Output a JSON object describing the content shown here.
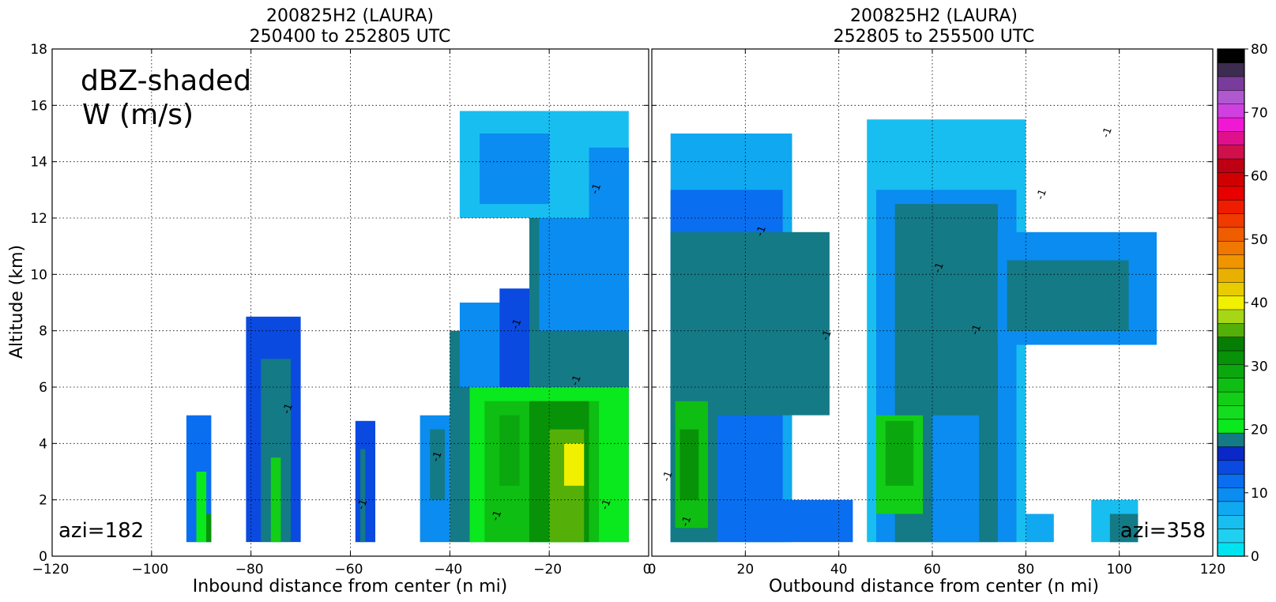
{
  "chart_data": [
    {
      "type": "heatmap",
      "panel": "left",
      "title_line1": "200825H2 (LAURA)",
      "title_line2": "250400 to 252805 UTC",
      "xlabel": "Inbound distance from center (n mi)",
      "ylabel": "Altitude (km)",
      "xlim": [
        -120,
        0
      ],
      "ylim": [
        0,
        18
      ],
      "xticks": [
        -120,
        -100,
        -80,
        -60,
        -40,
        -20,
        0
      ],
      "yticks": [
        0,
        2,
        4,
        6,
        8,
        10,
        12,
        14,
        16,
        18
      ],
      "grid": true,
      "annotation_line1": "dBZ-shaded",
      "annotation_line2": "W (m/s)",
      "azimuth_label": "azi=182",
      "contour_label": "-1",
      "cells": [
        {
          "x0": -93,
          "x1": -88,
          "y0": 0.5,
          "y1": 5.0,
          "dbz": 14
        },
        {
          "x0": -91,
          "x1": -89,
          "y0": 0.5,
          "y1": 3.0,
          "dbz": 24
        },
        {
          "x0": -89,
          "x1": -88,
          "y0": 0.5,
          "y1": 1.5,
          "dbz": 36
        },
        {
          "x0": -81,
          "x1": -70,
          "y0": 0.5,
          "y1": 8.5,
          "dbz": 16
        },
        {
          "x0": -78,
          "x1": -72,
          "y0": 0.5,
          "y1": 7.0,
          "dbz": 22
        },
        {
          "x0": -76,
          "x1": -74,
          "y0": 0.5,
          "y1": 3.5,
          "dbz": 28
        },
        {
          "x0": -59,
          "x1": -55,
          "y0": 0.5,
          "y1": 4.8,
          "dbz": 16
        },
        {
          "x0": -58,
          "x1": -57,
          "y0": 0.5,
          "y1": 3.8,
          "dbz": 22
        },
        {
          "x0": -46,
          "x1": -40,
          "y0": 0.5,
          "y1": 5.0,
          "dbz": 12
        },
        {
          "x0": -44,
          "x1": -41,
          "y0": 2.0,
          "y1": 4.5,
          "dbz": 20
        },
        {
          "x0": -40,
          "x1": -4,
          "y0": 0.5,
          "y1": 8.0,
          "dbz": 20
        },
        {
          "x0": -36,
          "x1": -4,
          "y0": 0.5,
          "y1": 6.0,
          "dbz": 24
        },
        {
          "x0": -33,
          "x1": -10,
          "y0": 0.5,
          "y1": 5.5,
          "dbz": 30
        },
        {
          "x0": -30,
          "x1": -26,
          "y0": 2.5,
          "y1": 5.0,
          "dbz": 34
        },
        {
          "x0": -24,
          "x1": -12,
          "y0": 0.5,
          "y1": 5.5,
          "dbz": 36
        },
        {
          "x0": -20,
          "x1": -13,
          "y0": 0.5,
          "y1": 4.5,
          "dbz": 40
        },
        {
          "x0": -17,
          "x1": -13,
          "y0": 2.5,
          "y1": 4.0,
          "dbz": 46
        },
        {
          "x0": -38,
          "x1": -4,
          "y0": 6.0,
          "y1": 9.0,
          "dbz": 12
        },
        {
          "x0": -30,
          "x1": -4,
          "y0": 6.0,
          "y1": 9.5,
          "dbz": 16
        },
        {
          "x0": -24,
          "x1": -4,
          "y0": 6.0,
          "y1": 12.0,
          "dbz": 20
        },
        {
          "x0": -22,
          "x1": -4,
          "y0": 8.0,
          "y1": 14.5,
          "dbz": 11
        },
        {
          "x0": -38,
          "x1": -4,
          "y0": 12.0,
          "y1": 15.8,
          "dbz": 6
        },
        {
          "x0": -34,
          "x1": -20,
          "y0": 12.5,
          "y1": 15.0,
          "dbz": 10
        },
        {
          "x0": -12,
          "x1": -4,
          "y0": 10.0,
          "y1": 14.5,
          "dbz": 12
        }
      ]
    },
    {
      "type": "heatmap",
      "panel": "right",
      "title_line1": "200825H2 (LAURA)",
      "title_line2": "252805 to 255500 UTC",
      "xlabel": "Outbound distance from center (n mi)",
      "ylabel": "",
      "xlim": [
        0,
        120
      ],
      "ylim": [
        0,
        18
      ],
      "xticks": [
        0,
        20,
        40,
        60,
        80,
        100,
        120
      ],
      "yticks": [
        0,
        2,
        4,
        6,
        8,
        10,
        12,
        14,
        16,
        18
      ],
      "grid": true,
      "azimuth_label": "azi=358",
      "contour_label": "-1",
      "cells": [
        {
          "x0": 4,
          "x1": 30,
          "y0": 0.5,
          "y1": 15.0,
          "dbz": 8
        },
        {
          "x0": 4,
          "x1": 28,
          "y0": 0.5,
          "y1": 13.0,
          "dbz": 13
        },
        {
          "x0": 4,
          "x1": 38,
          "y0": 5.0,
          "y1": 11.5,
          "dbz": 20
        },
        {
          "x0": 4,
          "x1": 14,
          "y0": 0.5,
          "y1": 8.0,
          "dbz": 22
        },
        {
          "x0": 5,
          "x1": 12,
          "y0": 1.0,
          "y1": 5.5,
          "dbz": 32
        },
        {
          "x0": 6,
          "x1": 10,
          "y0": 2.0,
          "y1": 4.5,
          "dbz": 36
        },
        {
          "x0": 20,
          "x1": 43,
          "y0": 0.5,
          "y1": 2.0,
          "dbz": 14
        },
        {
          "x0": 46,
          "x1": 80,
          "y0": 0.5,
          "y1": 15.5,
          "dbz": 7
        },
        {
          "x0": 48,
          "x1": 78,
          "y0": 0.5,
          "y1": 13.0,
          "dbz": 12
        },
        {
          "x0": 52,
          "x1": 74,
          "y0": 0.5,
          "y1": 12.5,
          "dbz": 20
        },
        {
          "x0": 74,
          "x1": 108,
          "y0": 7.5,
          "y1": 11.5,
          "dbz": 12
        },
        {
          "x0": 76,
          "x1": 102,
          "y0": 8.0,
          "y1": 10.5,
          "dbz": 20
        },
        {
          "x0": 48,
          "x1": 58,
          "y0": 1.5,
          "y1": 5.0,
          "dbz": 28
        },
        {
          "x0": 50,
          "x1": 56,
          "y0": 2.5,
          "y1": 4.8,
          "dbz": 34
        },
        {
          "x0": 60,
          "x1": 70,
          "y0": 0.5,
          "y1": 5.0,
          "dbz": 10
        },
        {
          "x0": 80,
          "x1": 86,
          "y0": 0.5,
          "y1": 1.5,
          "dbz": 9
        },
        {
          "x0": 94,
          "x1": 104,
          "y0": 0.5,
          "y1": 2.0,
          "dbz": 7
        },
        {
          "x0": 98,
          "x1": 104,
          "y0": 0.5,
          "y1": 1.5,
          "dbz": 20
        }
      ]
    }
  ],
  "colorbar": {
    "min": 0,
    "max": 80,
    "step": 2.5,
    "tick_labels": [
      "0",
      "10",
      "20",
      "30",
      "40",
      "50",
      "60",
      "70",
      "80"
    ],
    "colors": [
      "#00e4f0",
      "#20d0f0",
      "#18bef0",
      "#10a8f0",
      "#0a8cf0",
      "#0a6ef0",
      "#0a4ae0",
      "#0a28c8",
      "#147a86",
      "#0ae81e",
      "#14dc1e",
      "#12ce16",
      "#0ebe12",
      "#0aa80e",
      "#089208",
      "#067e06",
      "#54b008",
      "#a6d616",
      "#f0f000",
      "#e8cc00",
      "#e8b000",
      "#f09400",
      "#f07800",
      "#f05c00",
      "#f03a00",
      "#f01c00",
      "#e80000",
      "#d00000",
      "#be0014",
      "#d0104a",
      "#e0108c",
      "#f018d4",
      "#d040e0",
      "#b058d0",
      "#7a3c9c",
      "#3c2c50",
      "#000000"
    ]
  }
}
